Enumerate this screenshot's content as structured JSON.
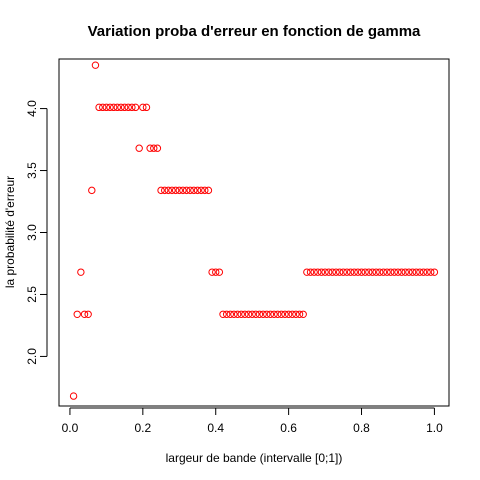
{
  "chart_data": {
    "type": "scatter",
    "title": "Variation proba d'erreur en fonction de gamma",
    "xlabel": "largeur de bande (intervalle [0;1])",
    "ylabel": "la probabilité d'erreur",
    "xlim": [
      -0.03,
      1.04
    ],
    "ylim": [
      1.6,
      4.4
    ],
    "grid": false,
    "point_color": "#ff0000",
    "x_ticks": [
      {
        "value": 0.0,
        "label": "0.0"
      },
      {
        "value": 0.2,
        "label": "0.2"
      },
      {
        "value": 0.4,
        "label": "0.4"
      },
      {
        "value": 0.6,
        "label": "0.6"
      },
      {
        "value": 0.8,
        "label": "0.8"
      },
      {
        "value": 1.0,
        "label": "1.0"
      }
    ],
    "y_ticks": [
      {
        "value": 2.0,
        "label": "2.0"
      },
      {
        "value": 2.5,
        "label": "2.5"
      },
      {
        "value": 3.0,
        "label": "3.0"
      },
      {
        "value": 3.5,
        "label": "3.5"
      },
      {
        "value": 4.0,
        "label": "4.0"
      }
    ],
    "points": [
      {
        "x": 0.01,
        "y": 1.68
      },
      {
        "x": 0.02,
        "y": 2.34
      },
      {
        "x": 0.03,
        "y": 2.68
      },
      {
        "x": 0.04,
        "y": 2.34
      },
      {
        "x": 0.05,
        "y": 2.34
      },
      {
        "x": 0.06,
        "y": 3.34
      },
      {
        "x": 0.07,
        "y": 4.35
      },
      {
        "x": 0.08,
        "y": 4.01
      },
      {
        "x": 0.09,
        "y": 4.01
      },
      {
        "x": 0.1,
        "y": 4.01
      },
      {
        "x": 0.11,
        "y": 4.01
      },
      {
        "x": 0.12,
        "y": 4.01
      },
      {
        "x": 0.13,
        "y": 4.01
      },
      {
        "x": 0.14,
        "y": 4.01
      },
      {
        "x": 0.15,
        "y": 4.01
      },
      {
        "x": 0.16,
        "y": 4.01
      },
      {
        "x": 0.17,
        "y": 4.01
      },
      {
        "x": 0.18,
        "y": 4.01
      },
      {
        "x": 0.19,
        "y": 3.68
      },
      {
        "x": 0.2,
        "y": 4.01
      },
      {
        "x": 0.21,
        "y": 4.01
      },
      {
        "x": 0.22,
        "y": 3.68
      },
      {
        "x": 0.23,
        "y": 3.68
      },
      {
        "x": 0.24,
        "y": 3.68
      },
      {
        "x": 0.25,
        "y": 3.34
      },
      {
        "x": 0.26,
        "y": 3.34
      },
      {
        "x": 0.27,
        "y": 3.34
      },
      {
        "x": 0.28,
        "y": 3.34
      },
      {
        "x": 0.29,
        "y": 3.34
      },
      {
        "x": 0.3,
        "y": 3.34
      },
      {
        "x": 0.31,
        "y": 3.34
      },
      {
        "x": 0.32,
        "y": 3.34
      },
      {
        "x": 0.33,
        "y": 3.34
      },
      {
        "x": 0.34,
        "y": 3.34
      },
      {
        "x": 0.35,
        "y": 3.34
      },
      {
        "x": 0.36,
        "y": 3.34
      },
      {
        "x": 0.37,
        "y": 3.34
      },
      {
        "x": 0.38,
        "y": 3.34
      },
      {
        "x": 0.39,
        "y": 2.68
      },
      {
        "x": 0.4,
        "y": 2.68
      },
      {
        "x": 0.41,
        "y": 2.68
      },
      {
        "x": 0.42,
        "y": 2.34
      },
      {
        "x": 0.43,
        "y": 2.34
      },
      {
        "x": 0.44,
        "y": 2.34
      },
      {
        "x": 0.45,
        "y": 2.34
      },
      {
        "x": 0.46,
        "y": 2.34
      },
      {
        "x": 0.47,
        "y": 2.34
      },
      {
        "x": 0.48,
        "y": 2.34
      },
      {
        "x": 0.49,
        "y": 2.34
      },
      {
        "x": 0.5,
        "y": 2.34
      },
      {
        "x": 0.51,
        "y": 2.34
      },
      {
        "x": 0.52,
        "y": 2.34
      },
      {
        "x": 0.53,
        "y": 2.34
      },
      {
        "x": 0.54,
        "y": 2.34
      },
      {
        "x": 0.55,
        "y": 2.34
      },
      {
        "x": 0.56,
        "y": 2.34
      },
      {
        "x": 0.57,
        "y": 2.34
      },
      {
        "x": 0.58,
        "y": 2.34
      },
      {
        "x": 0.59,
        "y": 2.34
      },
      {
        "x": 0.6,
        "y": 2.34
      },
      {
        "x": 0.61,
        "y": 2.34
      },
      {
        "x": 0.62,
        "y": 2.34
      },
      {
        "x": 0.63,
        "y": 2.34
      },
      {
        "x": 0.64,
        "y": 2.34
      },
      {
        "x": 0.65,
        "y": 2.68
      },
      {
        "x": 0.66,
        "y": 2.68
      },
      {
        "x": 0.67,
        "y": 2.68
      },
      {
        "x": 0.68,
        "y": 2.68
      },
      {
        "x": 0.69,
        "y": 2.68
      },
      {
        "x": 0.7,
        "y": 2.68
      },
      {
        "x": 0.71,
        "y": 2.68
      },
      {
        "x": 0.72,
        "y": 2.68
      },
      {
        "x": 0.73,
        "y": 2.68
      },
      {
        "x": 0.74,
        "y": 2.68
      },
      {
        "x": 0.75,
        "y": 2.68
      },
      {
        "x": 0.76,
        "y": 2.68
      },
      {
        "x": 0.77,
        "y": 2.68
      },
      {
        "x": 0.78,
        "y": 2.68
      },
      {
        "x": 0.79,
        "y": 2.68
      },
      {
        "x": 0.8,
        "y": 2.68
      },
      {
        "x": 0.81,
        "y": 2.68
      },
      {
        "x": 0.82,
        "y": 2.68
      },
      {
        "x": 0.83,
        "y": 2.68
      },
      {
        "x": 0.84,
        "y": 2.68
      },
      {
        "x": 0.85,
        "y": 2.68
      },
      {
        "x": 0.86,
        "y": 2.68
      },
      {
        "x": 0.87,
        "y": 2.68
      },
      {
        "x": 0.88,
        "y": 2.68
      },
      {
        "x": 0.89,
        "y": 2.68
      },
      {
        "x": 0.9,
        "y": 2.68
      },
      {
        "x": 0.91,
        "y": 2.68
      },
      {
        "x": 0.92,
        "y": 2.68
      },
      {
        "x": 0.93,
        "y": 2.68
      },
      {
        "x": 0.94,
        "y": 2.68
      },
      {
        "x": 0.95,
        "y": 2.68
      },
      {
        "x": 0.96,
        "y": 2.68
      },
      {
        "x": 0.97,
        "y": 2.68
      },
      {
        "x": 0.98,
        "y": 2.68
      },
      {
        "x": 0.99,
        "y": 2.68
      },
      {
        "x": 1.0,
        "y": 2.68
      }
    ]
  }
}
